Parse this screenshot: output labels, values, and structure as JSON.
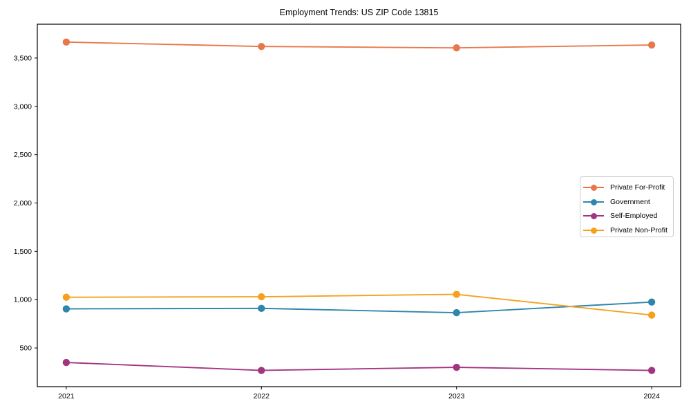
{
  "figure": {
    "title": "Employment Trends: US ZIP Code 13815"
  },
  "chart_data": {
    "type": "line",
    "title": "Employment Trends: US ZIP Code 13815",
    "x": [
      "2021",
      "2022",
      "2023",
      "2024"
    ],
    "series": [
      {
        "name": "Private For-Profit",
        "color": "#e8784b",
        "values": [
          3665,
          3620,
          3605,
          3635
        ]
      },
      {
        "name": "Government",
        "color": "#2f86ab",
        "values": [
          905,
          910,
          865,
          975
        ]
      },
      {
        "name": "Self-Employed",
        "color": "#a23582",
        "values": [
          350,
          268,
          300,
          268
        ]
      },
      {
        "name": "Private Non-Profit",
        "color": "#f5a11d",
        "values": [
          1025,
          1030,
          1055,
          840
        ]
      }
    ],
    "yticks": {
      "values": [
        500,
        1000,
        1500,
        2000,
        2500,
        3000,
        3500
      ],
      "labels": [
        "500",
        "1,000",
        "1,500",
        "2,000",
        "2,500",
        "3,000",
        "3,500"
      ]
    },
    "ylim": [
      100,
      3850
    ],
    "xlabel": "",
    "ylabel": "",
    "grid": false,
    "marker": "circle",
    "legend_position": "center right",
    "axis_color": "#000000",
    "tick_label_color": "#000000",
    "background": "#ffffff"
  }
}
